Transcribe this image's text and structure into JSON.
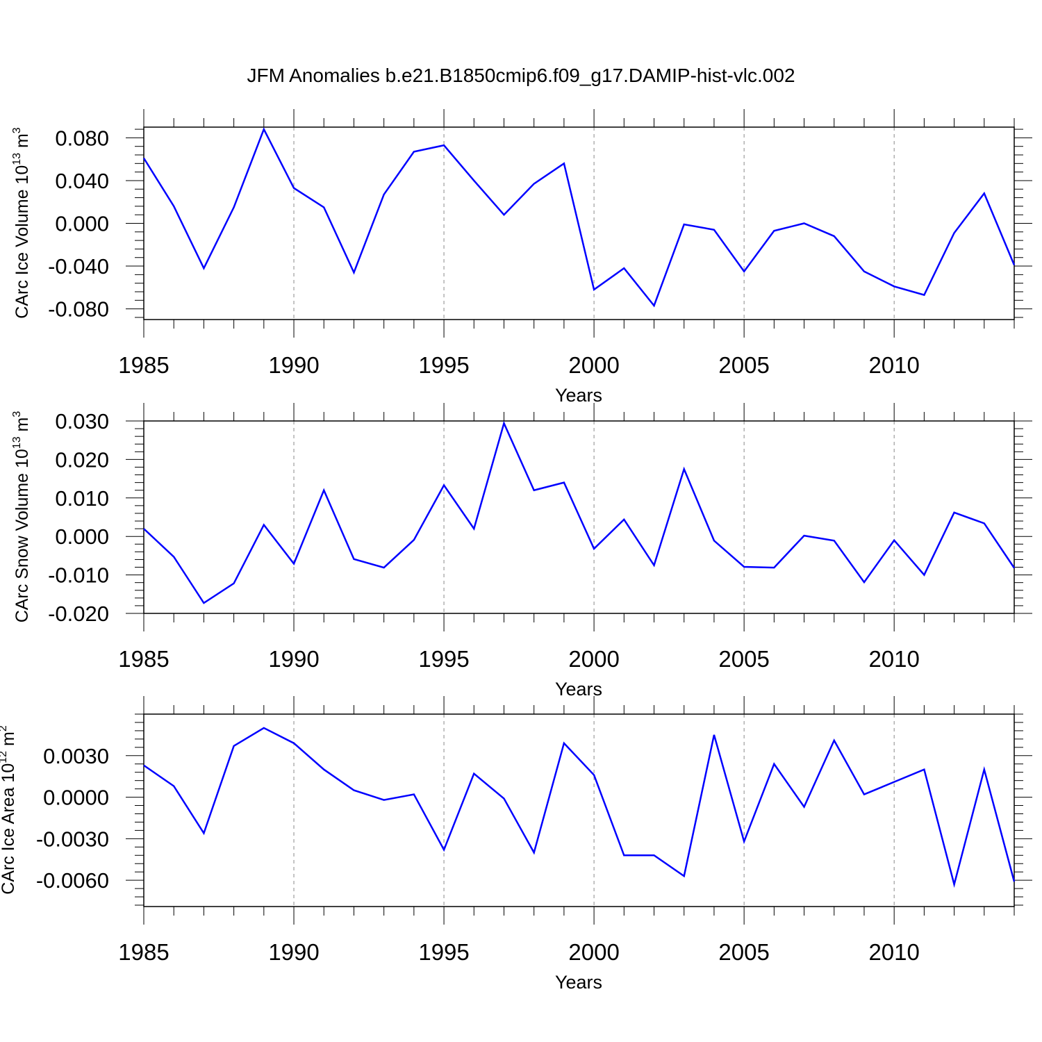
{
  "figure_title": "JFM Anomalies b.e21.B1850cmip6.f09_g17.DAMIP-hist-vlc.002",
  "line_color": "#0000ff",
  "chart_data": [
    {
      "type": "line",
      "title": "JFM Anomalies b.e21.B1850cmip6.f09_g17.DAMIP-hist-vlc.002",
      "xlabel": "Years",
      "ylabel_text": "CArc Ice Volume 10",
      "ylabel_exp": "13",
      "ylabel_unit": " m",
      "ylabel_unit_exp": "3",
      "xlim": [
        1985,
        2014
      ],
      "ylim": [
        -0.09,
        0.09
      ],
      "x_ticks": [
        1985,
        1990,
        1995,
        2000,
        2005,
        2010
      ],
      "x_tick_labels": [
        "1985",
        "1990",
        "1995",
        "2000",
        "2005",
        "2010"
      ],
      "y_ticks": [
        0.08,
        0.04,
        0.0,
        -0.04,
        -0.08
      ],
      "y_tick_labels": [
        "0.080",
        "0.040",
        "0.000",
        "-0.040",
        "-0.080"
      ],
      "x": [
        1985,
        1986,
        1987,
        1988,
        1989,
        1990,
        1991,
        1992,
        1993,
        1994,
        1995,
        1996,
        1997,
        1998,
        1999,
        2000,
        2001,
        2002,
        2003,
        2004,
        2005,
        2006,
        2007,
        2008,
        2009,
        2010,
        2011,
        2012,
        2013,
        2014
      ],
      "y": [
        0.061,
        0.016,
        -0.042,
        0.015,
        0.088,
        0.033,
        0.015,
        -0.046,
        0.027,
        0.067,
        0.073,
        0.04,
        0.008,
        0.037,
        0.056,
        -0.062,
        -0.042,
        -0.077,
        -0.001,
        -0.006,
        -0.045,
        -0.007,
        0.0,
        -0.012,
        -0.045,
        -0.059,
        -0.067,
        -0.009,
        0.028,
        -0.039
      ]
    },
    {
      "type": "line",
      "xlabel": "Years",
      "ylabel_text": "CArc Snow Volume 10",
      "ylabel_exp": "13",
      "ylabel_unit": " m",
      "ylabel_unit_exp": "3",
      "xlim": [
        1985,
        2014
      ],
      "ylim": [
        -0.02,
        0.03
      ],
      "x_ticks": [
        1985,
        1990,
        1995,
        2000,
        2005,
        2010
      ],
      "x_tick_labels": [
        "1985",
        "1990",
        "1995",
        "2000",
        "2005",
        "2010"
      ],
      "y_ticks": [
        0.03,
        0.02,
        0.01,
        0.0,
        -0.01,
        -0.02
      ],
      "y_tick_labels": [
        "0.030",
        "0.020",
        "0.010",
        "0.000",
        "-0.010",
        "-0.020"
      ],
      "x": [
        1985,
        1986,
        1987,
        1988,
        1989,
        1990,
        1991,
        1992,
        1993,
        1994,
        1995,
        1996,
        1997,
        1998,
        1999,
        2000,
        2001,
        2002,
        2003,
        2004,
        2005,
        2006,
        2007,
        2008,
        2009,
        2010,
        2011,
        2012,
        2013,
        2014
      ],
      "y": [
        0.002,
        -0.0053,
        -0.0173,
        -0.0122,
        0.003,
        -0.0071,
        0.012,
        -0.0059,
        -0.0081,
        -0.0009,
        0.0133,
        0.002,
        0.0294,
        0.012,
        0.014,
        -0.0032,
        0.0044,
        -0.0075,
        0.0175,
        -0.0011,
        -0.0079,
        -0.0081,
        0.0002,
        -0.0011,
        -0.0119,
        -0.001,
        -0.01,
        0.0062,
        0.0034,
        -0.0082
      ]
    },
    {
      "type": "line",
      "xlabel": "Years",
      "ylabel_text": "CArc Ice Area 10",
      "ylabel_exp": "12",
      "ylabel_unit": " m",
      "ylabel_unit_exp": "2",
      "xlim": [
        1985,
        2014
      ],
      "ylim": [
        -0.0079,
        0.006
      ],
      "x_ticks": [
        1985,
        1990,
        1995,
        2000,
        2005,
        2010
      ],
      "x_tick_labels": [
        "1985",
        "1990",
        "1995",
        "2000",
        "2005",
        "2010"
      ],
      "y_ticks": [
        0.003,
        0.0,
        -0.003,
        -0.006
      ],
      "y_tick_labels": [
        "0.0030",
        "0.0000",
        "-0.0030",
        "-0.0060"
      ],
      "x": [
        1985,
        1986,
        1987,
        1988,
        1989,
        1990,
        1991,
        1992,
        1993,
        1994,
        1995,
        1996,
        1997,
        1998,
        1999,
        2000,
        2001,
        2002,
        2003,
        2004,
        2005,
        2006,
        2007,
        2008,
        2009,
        2010,
        2011,
        2012,
        2013,
        2014
      ],
      "y": [
        0.0023,
        0.0008,
        -0.0026,
        0.0037,
        0.005,
        0.0039,
        0.002,
        0.0005,
        -0.0002,
        0.0002,
        -0.0038,
        0.0017,
        -0.0001,
        -0.004,
        0.0039,
        0.0016,
        -0.0042,
        -0.0042,
        -0.0057,
        0.0045,
        -0.0032,
        0.0024,
        -0.0007,
        0.0041,
        0.0002,
        0.0011,
        0.002,
        -0.0063,
        0.002,
        -0.0061
      ]
    }
  ]
}
